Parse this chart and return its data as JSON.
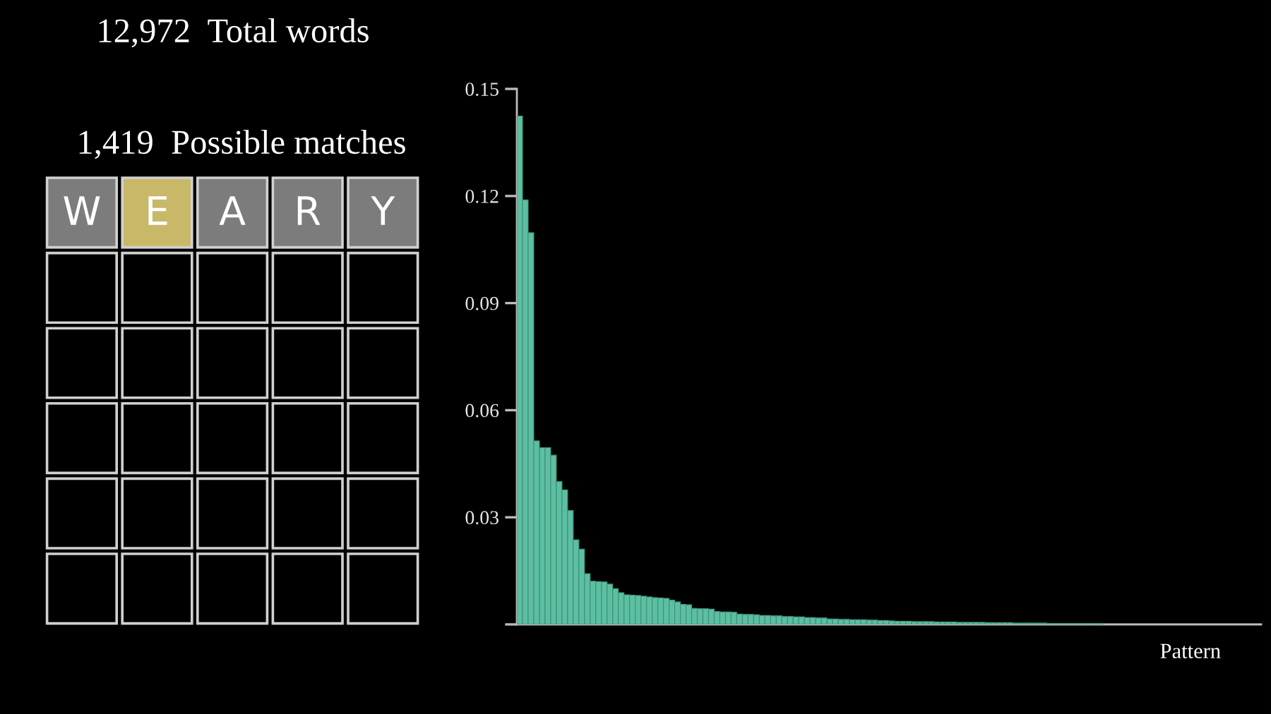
{
  "chart_data": {
    "type": "bar",
    "xlabel": "Pattern",
    "color": "#5cbfa2",
    "annotations": [
      "12,972  Total words",
      "1,419  Possible matches",
      "W",
      "E",
      "A",
      "R",
      "Y"
    ],
    "ylim": [
      0,
      0.15
    ],
    "yticks": [
      {
        "value": 0,
        "label": null
      },
      0.03,
      0.06,
      0.09,
      0.12,
      0.15
    ],
    "categories": [
      null,
      null,
      null,
      null,
      null,
      null,
      null,
      null,
      null,
      null,
      null,
      null,
      null,
      null,
      null,
      null,
      null,
      null,
      null,
      null,
      null,
      null,
      null,
      null,
      null,
      null,
      null,
      null,
      null,
      null,
      null,
      null,
      null,
      null,
      null,
      null,
      null,
      null,
      null,
      null,
      null,
      null,
      null,
      null,
      null,
      null,
      null,
      null,
      null,
      null,
      null,
      null,
      null,
      null,
      null,
      null,
      null,
      null,
      null,
      null,
      null,
      null,
      null,
      null,
      null,
      null,
      null,
      null,
      null,
      null,
      null,
      null,
      null,
      null,
      null,
      null,
      null,
      null,
      null,
      null,
      null,
      null,
      null,
      null,
      null,
      null,
      null,
      null,
      null,
      null,
      null,
      null,
      null,
      null,
      null,
      null,
      null,
      null,
      null,
      null,
      null,
      null,
      null,
      null,
      null,
      null,
      null,
      null,
      null,
      null,
      null,
      null,
      null,
      null,
      null,
      null,
      null,
      null,
      null,
      null,
      null,
      null,
      null,
      null,
      null,
      null,
      null,
      null,
      null,
      null,
      null,
      null
    ],
    "values": [
      0.1424,
      0.1189,
      0.1097,
      0.0514,
      0.0495,
      0.0495,
      0.0474,
      0.04,
      0.0377,
      0.0319,
      0.0237,
      0.0211,
      0.0142,
      0.0121,
      0.012,
      0.0119,
      0.0113,
      0.01,
      0.0089,
      0.0083,
      0.0082,
      0.0081,
      0.0079,
      0.0077,
      0.0075,
      0.0074,
      0.0073,
      0.0068,
      0.0063,
      0.0056,
      0.0055,
      0.0045,
      0.0044,
      0.0044,
      0.0043,
      0.0036,
      0.0035,
      0.0035,
      0.0034,
      0.0029,
      0.0028,
      0.0028,
      0.0027,
      0.0025,
      0.0025,
      0.0024,
      0.0024,
      0.0022,
      0.0022,
      0.0021,
      0.0021,
      0.0019,
      0.0019,
      0.0018,
      0.0018,
      0.0015,
      0.0015,
      0.0014,
      0.0014,
      0.0013,
      0.0013,
      0.0013,
      0.0012,
      0.0012,
      0.0011,
      0.0011,
      0.001,
      0.0009,
      0.0009,
      0.0009,
      0.0008,
      0.0008,
      0.0008,
      0.0008,
      0.0007,
      0.0007,
      0.0007,
      0.0007,
      0.0006,
      0.0006,
      0.0006,
      0.0006,
      0.0006,
      0.0005,
      0.0005,
      0.0005,
      0.0005,
      0.0005,
      0.0004,
      0.0004,
      0.0004,
      0.0004,
      0.0004,
      0.0004,
      0.0003,
      0.0003,
      0.0003,
      0.0003,
      0.0003,
      0.0003,
      0.0003,
      0.0003,
      0.0003,
      0.0003,
      null,
      null,
      null,
      null,
      null,
      null,
      null,
      null,
      null,
      null,
      null,
      null,
      null,
      null,
      null,
      null,
      null,
      null,
      null,
      null,
      null,
      null,
      null,
      null,
      null,
      null,
      null,
      null
    ]
  }
}
